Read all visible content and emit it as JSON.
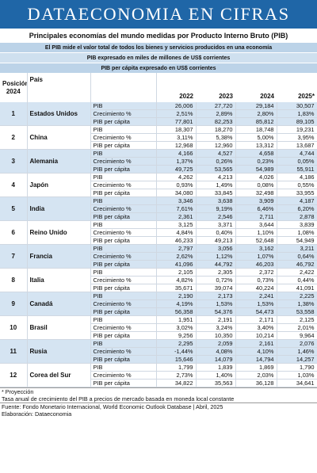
{
  "header": {
    "banner": "DATAECONOMIA EN CIFRAS",
    "subtitle": "Principales economías del mundo medidas por Producto Interno Bruto (PIB)",
    "notes": [
      "El PIB mide el valor total de todos los bienes y servicios producidos en una economía",
      "PIB expresado en miles de millones de US$ corrientes",
      "PIB per cápita expresado en US$ corrientes"
    ]
  },
  "table": {
    "columns": {
      "position": "Posición 2024",
      "country": "País",
      "years": [
        "2022",
        "2023",
        "2024",
        "2025*"
      ]
    },
    "indicators": [
      "PIB",
      "Crecimiento %",
      "PIB per cápita"
    ],
    "countries": [
      {
        "pos": "1",
        "name": "Estados Unidos",
        "rows": [
          [
            "26,006",
            "27,720",
            "29,184",
            "30,507"
          ],
          [
            "2,51%",
            "2,89%",
            "2,80%",
            "1,83%"
          ],
          [
            "77,801",
            "82,253",
            "85,812",
            "89,105"
          ]
        ]
      },
      {
        "pos": "2",
        "name": "China",
        "rows": [
          [
            "18,307",
            "18,270",
            "18,748",
            "19,231"
          ],
          [
            "3,11%",
            "5,38%",
            "5,00%",
            "3,95%"
          ],
          [
            "12,968",
            "12,960",
            "13,312",
            "13,687"
          ]
        ]
      },
      {
        "pos": "3",
        "name": "Alemania",
        "rows": [
          [
            "4,166",
            "4,527",
            "4,658",
            "4,744"
          ],
          [
            "1,37%",
            "0,26%",
            "0,23%",
            "0,05%"
          ],
          [
            "49,725",
            "53,565",
            "54,989",
            "55,911"
          ]
        ]
      },
      {
        "pos": "4",
        "name": "Japón",
        "rows": [
          [
            "4,262",
            "4,213",
            "4,026",
            "4,186"
          ],
          [
            "0,93%",
            "1,49%",
            "0,08%",
            "0,55%"
          ],
          [
            "34,080",
            "33,845",
            "32,498",
            "33,955"
          ]
        ]
      },
      {
        "pos": "5",
        "name": "India",
        "rows": [
          [
            "3,346",
            "3,638",
            "3,909",
            "4,187"
          ],
          [
            "7,61%",
            "9,19%",
            "6,46%",
            "6,20%"
          ],
          [
            "2,361",
            "2,546",
            "2,711",
            "2,878"
          ]
        ]
      },
      {
        "pos": "6",
        "name": "Reino Unido",
        "rows": [
          [
            "3,125",
            "3,371",
            "3,644",
            "3,839"
          ],
          [
            "4,84%",
            "0,40%",
            "1,10%",
            "1,08%"
          ],
          [
            "46,233",
            "49,213",
            "52,648",
            "54,949"
          ]
        ]
      },
      {
        "pos": "7",
        "name": "Francia",
        "rows": [
          [
            "2,797",
            "3,056",
            "3,162",
            "3,211"
          ],
          [
            "2,62%",
            "1,12%",
            "1,07%",
            "0,64%"
          ],
          [
            "41,096",
            "44,792",
            "46,203",
            "46,792"
          ]
        ]
      },
      {
        "pos": "8",
        "name": "Italia",
        "rows": [
          [
            "2,105",
            "2,305",
            "2,372",
            "2,422"
          ],
          [
            "4,82%",
            "0,72%",
            "0,73%",
            "0,44%"
          ],
          [
            "35,671",
            "39,074",
            "40,224",
            "41,091"
          ]
        ]
      },
      {
        "pos": "9",
        "name": "Canadá",
        "rows": [
          [
            "2,190",
            "2,173",
            "2,241",
            "2,225"
          ],
          [
            "4,19%",
            "1,53%",
            "1,53%",
            "1,38%"
          ],
          [
            "56,358",
            "54,376",
            "54,473",
            "53,558"
          ]
        ]
      },
      {
        "pos": "10",
        "name": "Brasil",
        "rows": [
          [
            "1,951",
            "2,191",
            "2,171",
            "2,125"
          ],
          [
            "3,02%",
            "3,24%",
            "3,40%",
            "2,01%"
          ],
          [
            "9,256",
            "10,350",
            "10,214",
            "9,964"
          ]
        ]
      },
      {
        "pos": "11",
        "name": "Rusia",
        "rows": [
          [
            "2,295",
            "2,059",
            "2,161",
            "2,076"
          ],
          [
            "-1,44%",
            "4,08%",
            "4,10%",
            "1,46%"
          ],
          [
            "15,646",
            "14,079",
            "14,794",
            "14,257"
          ]
        ]
      },
      {
        "pos": "12",
        "name": "Corea del Sur",
        "rows": [
          [
            "1,799",
            "1,839",
            "1,869",
            "1,790"
          ],
          [
            "2,73%",
            "1,40%",
            "2,03%",
            "1,03%"
          ],
          [
            "34,822",
            "35,563",
            "36,128",
            "34,641"
          ]
        ]
      }
    ]
  },
  "footer": {
    "proyeccion": "* Proyección",
    "tasa": "Tasa anual de crecimiento del PIB a precios de mercado basada en moneda local constante",
    "fuente": "Fuente: Fondo Monetario Internacional, World Economic Outlook Database | Abril, 2025",
    "elaboracion": "Elaboración: Dataeconomia"
  }
}
